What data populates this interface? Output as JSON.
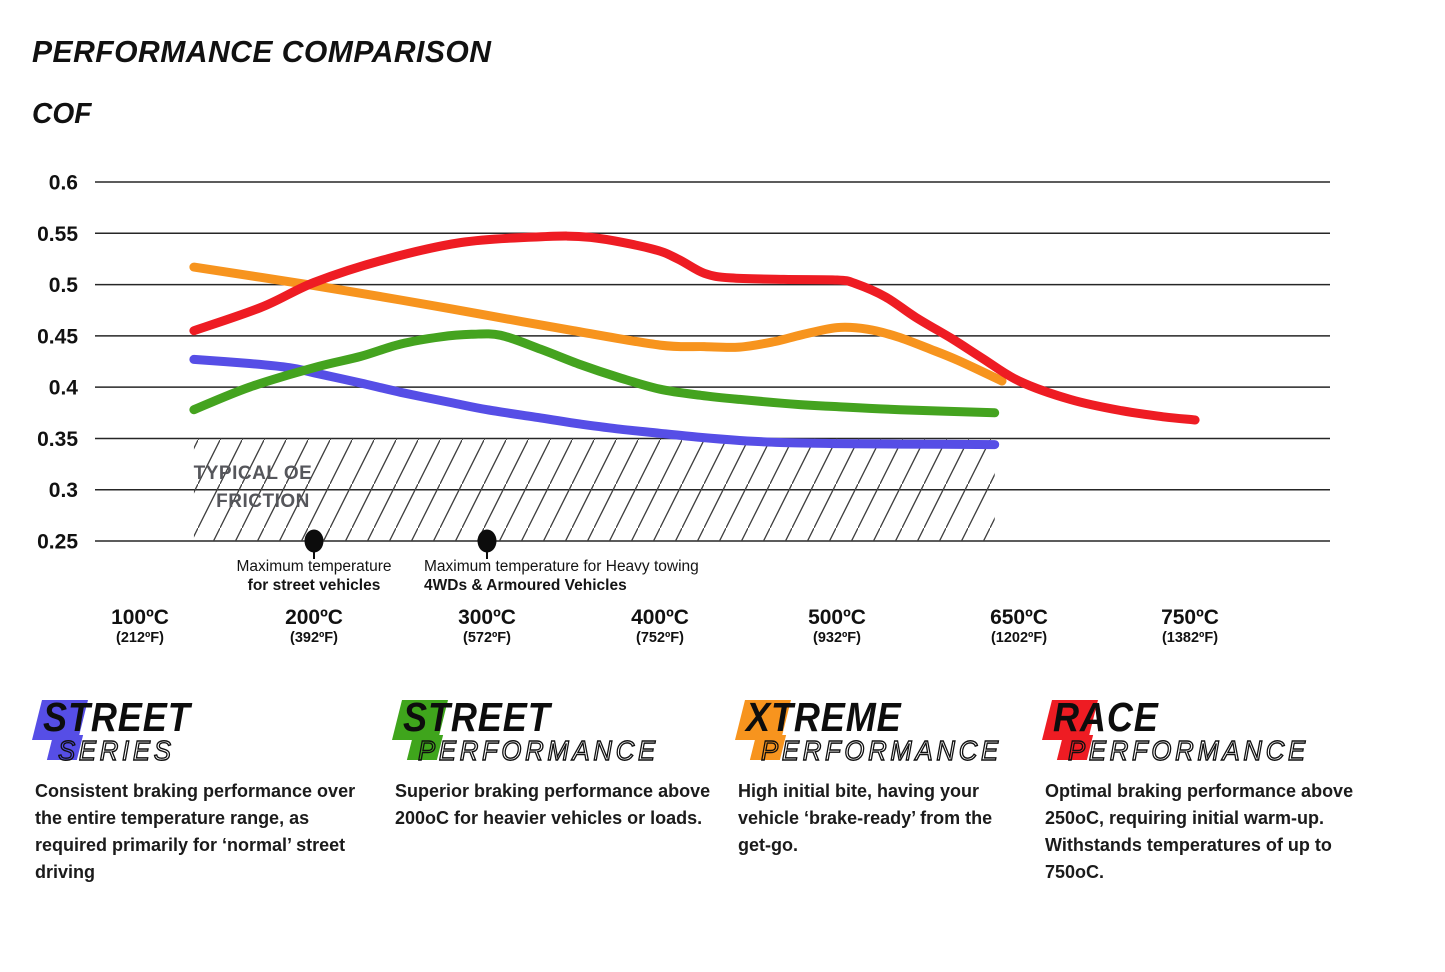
{
  "title": "PERFORMANCE COMPARISON",
  "y_axis_title": "COF",
  "chart_data": {
    "type": "line",
    "title": "PERFORMANCE COMPARISON",
    "ylabel": "COF",
    "ylim": [
      0.25,
      0.6
    ],
    "grid": true,
    "legend_position": "none",
    "y_ticks": [
      "0.6",
      "0.55",
      "0.5",
      "0.45",
      "0.4",
      "0.35",
      "0.3",
      "0.25"
    ],
    "x_ticks": [
      {
        "c": 100,
        "celsius": "100ºC",
        "fahrenheit": "(212ºF)"
      },
      {
        "c": 200,
        "celsius": "200ºC",
        "fahrenheit": "(392ºF)"
      },
      {
        "c": 300,
        "celsius": "300ºC",
        "fahrenheit": "(572ºF)"
      },
      {
        "c": 400,
        "celsius": "400ºC",
        "fahrenheit": "(752ºF)"
      },
      {
        "c": 500,
        "celsius": "500ºC",
        "fahrenheit": "(932ºF)"
      },
      {
        "c": 650,
        "celsius": "650ºC",
        "fahrenheit": "(1202ºF)"
      },
      {
        "c": 750,
        "celsius": "750ºC",
        "fahrenheit": "(1382ºF)"
      }
    ],
    "oe_band": {
      "label_lines": [
        "TYPICAL OE",
        "FRICTION"
      ],
      "label_color": "#55565b",
      "cof_range": [
        0.25,
        0.35
      ],
      "temp_range_c": [
        131,
        630
      ]
    },
    "annotations": [
      {
        "at_c": 200,
        "line1": "Maximum temperature",
        "line2": "for street vehicles"
      },
      {
        "at_c": 300,
        "line1": "Maximum temperature for Heavy towing",
        "line2": "4WDs & Armoured Vehicles"
      }
    ],
    "series": [
      {
        "name": "Street Series",
        "color": "#564ee6",
        "points": [
          [
            131,
            0.427
          ],
          [
            163,
            0.423
          ],
          [
            186,
            0.419
          ],
          [
            200,
            0.414
          ],
          [
            227,
            0.404
          ],
          [
            250,
            0.395
          ],
          [
            279,
            0.385
          ],
          [
            300,
            0.378
          ],
          [
            331,
            0.37
          ],
          [
            354,
            0.364
          ],
          [
            377,
            0.359
          ],
          [
            400,
            0.355
          ],
          [
            423,
            0.351
          ],
          [
            445,
            0.348
          ],
          [
            468,
            0.346
          ],
          [
            500,
            0.345
          ],
          [
            552,
            0.3445
          ],
          [
            630,
            0.344
          ]
        ]
      },
      {
        "name": "Street Performance",
        "color": "#44a31f",
        "points": [
          [
            131,
            0.378
          ],
          [
            163,
            0.4
          ],
          [
            200,
            0.419
          ],
          [
            227,
            0.43
          ],
          [
            250,
            0.442
          ],
          [
            273,
            0.449
          ],
          [
            291,
            0.4515
          ],
          [
            308,
            0.4505
          ],
          [
            331,
            0.437
          ],
          [
            354,
            0.422
          ],
          [
            377,
            0.409
          ],
          [
            400,
            0.398
          ],
          [
            423,
            0.392
          ],
          [
            445,
            0.388
          ],
          [
            479,
            0.383
          ],
          [
            500,
            0.381
          ],
          [
            552,
            0.378
          ],
          [
            630,
            0.375
          ]
        ]
      },
      {
        "name": "Xtreme Performance",
        "color": "#f7941e",
        "points": [
          [
            131,
            0.517
          ],
          [
            200,
            0.499
          ],
          [
            250,
            0.485
          ],
          [
            300,
            0.47
          ],
          [
            350,
            0.455
          ],
          [
            400,
            0.441
          ],
          [
            425,
            0.4395
          ],
          [
            445,
            0.439
          ],
          [
            465,
            0.4445
          ],
          [
            480,
            0.451
          ],
          [
            500,
            0.458
          ],
          [
            525,
            0.4565
          ],
          [
            550,
            0.449
          ],
          [
            577,
            0.437
          ],
          [
            600,
            0.426
          ],
          [
            636,
            0.406
          ]
        ]
      },
      {
        "name": "Race Performance",
        "color": "#ee1c23",
        "points": [
          [
            131,
            0.455
          ],
          [
            170,
            0.478
          ],
          [
            200,
            0.502
          ],
          [
            240,
            0.524
          ],
          [
            285,
            0.541
          ],
          [
            330,
            0.5465
          ],
          [
            360,
            0.546
          ],
          [
            395,
            0.535
          ],
          [
            410,
            0.525
          ],
          [
            425,
            0.511
          ],
          [
            440,
            0.5065
          ],
          [
            470,
            0.505
          ],
          [
            500,
            0.5045
          ],
          [
            515,
            0.501
          ],
          [
            540,
            0.488
          ],
          [
            565,
            0.468
          ],
          [
            595,
            0.447
          ],
          [
            620,
            0.428
          ],
          [
            650,
            0.406
          ],
          [
            680,
            0.388
          ],
          [
            710,
            0.377
          ],
          [
            735,
            0.371
          ],
          [
            753,
            0.368
          ]
        ]
      }
    ]
  },
  "products": [
    {
      "name": "Street Series",
      "word1": "STREET",
      "word2": "SERIES",
      "color": "#564ee6",
      "description": "Consistent braking performance over the entire temperature range, as required primarily for ‘normal’ street driving"
    },
    {
      "name": "Street Performance",
      "word1": "STREET",
      "word2": "PERFORMANCE",
      "color": "#3fa51c",
      "description": "Superior braking performance above 200oC for heavier vehicles or loads."
    },
    {
      "name": "Xtreme Performance",
      "word1": "XTREME",
      "word2": "PERFORMANCE",
      "color": "#f7941e",
      "description": "High initial bite, having your vehicle ‘brake-ready’ from the get-go."
    },
    {
      "name": "Race Performance",
      "word1": "RACE",
      "word2": "PERFORMANCE",
      "color": "#ee1c23",
      "description": "Optimal braking performance above 250oC, requiring initial warm-up. Withstands temperatures of up to 750oC."
    }
  ]
}
